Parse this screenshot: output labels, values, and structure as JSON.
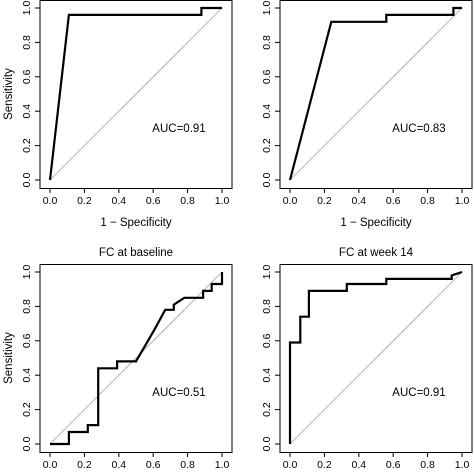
{
  "chart_data": [
    {
      "type": "line",
      "title": "",
      "xlabel": "1 − Specificity",
      "ylabel": "Sensitivity",
      "xlim": [
        0,
        1
      ],
      "ylim": [
        0,
        1
      ],
      "xticks": [
        "0.0",
        "0.2",
        "0.4",
        "0.6",
        "0.8",
        "1.0"
      ],
      "yticks": [
        "0.0",
        "0.2",
        "0.4",
        "0.6",
        "0.8",
        "1.0"
      ],
      "annotation": "AUC=0.91",
      "grid": false,
      "reference_line": [
        [
          0,
          0
        ],
        [
          1,
          1
        ]
      ],
      "series": [
        {
          "x": [
            0,
            0.11,
            0.11,
            0.88,
            0.88,
            1.0
          ],
          "y": [
            0,
            0.96,
            0.96,
            0.96,
            1.0,
            1.0
          ]
        }
      ]
    },
    {
      "type": "line",
      "title": "",
      "xlabel": "1 − Specificity",
      "ylabel": "",
      "xlim": [
        0,
        1
      ],
      "ylim": [
        0,
        1
      ],
      "xticks": [
        "0.0",
        "0.2",
        "0.4",
        "0.6",
        "0.8",
        "1.0"
      ],
      "yticks": [
        "0.0",
        "0.2",
        "0.4",
        "0.6",
        "0.8",
        "1.0"
      ],
      "annotation": "AUC=0.83",
      "grid": false,
      "reference_line": [
        [
          0,
          0
        ],
        [
          1,
          1
        ]
      ],
      "series": [
        {
          "x": [
            0,
            0.24,
            0.56,
            0.56,
            0.95,
            0.95,
            1.0
          ],
          "y": [
            0,
            0.92,
            0.92,
            0.96,
            0.96,
            1.0,
            1.0
          ]
        }
      ]
    },
    {
      "type": "line",
      "title": "FC at baseline",
      "xlabel": "",
      "ylabel": "Sensitivity",
      "xlim": [
        0,
        1
      ],
      "ylim": [
        0,
        1
      ],
      "xticks": [
        "0.0",
        "0.2",
        "0.4",
        "0.6",
        "0.8",
        "1.0"
      ],
      "yticks": [
        "0.0",
        "0.2",
        "0.4",
        "0.6",
        "0.8",
        "1.0"
      ],
      "annotation": "AUC=0.51",
      "grid": false,
      "reference_line": [
        [
          0,
          0
        ],
        [
          1,
          1
        ]
      ],
      "series": [
        {
          "x": [
            0,
            0.11,
            0.11,
            0.22,
            0.22,
            0.28,
            0.28,
            0.39,
            0.39,
            0.5,
            0.61,
            0.61,
            0.67,
            0.72,
            0.72,
            0.78,
            0.83,
            0.89,
            0.89,
            0.94,
            0.94,
            1.0,
            1.0
          ],
          "y": [
            0,
            0,
            0.07,
            0.07,
            0.11,
            0.11,
            0.44,
            0.44,
            0.48,
            0.48,
            0.67,
            0.67,
            0.78,
            0.78,
            0.81,
            0.85,
            0.85,
            0.85,
            0.89,
            0.89,
            0.93,
            0.93,
            1.0
          ]
        }
      ]
    },
    {
      "type": "line",
      "title": "FC at week 14",
      "xlabel": "",
      "ylabel": "",
      "xlim": [
        0,
        1
      ],
      "ylim": [
        0,
        1
      ],
      "xticks": [
        "0.0",
        "0.2",
        "0.4",
        "0.6",
        "0.8",
        "1.0"
      ],
      "yticks": [
        "0.0",
        "0.2",
        "0.4",
        "0.6",
        "0.8",
        "1.0"
      ],
      "annotation": "AUC=0.91",
      "grid": false,
      "reference_line": [
        [
          0,
          0
        ],
        [
          1,
          1
        ]
      ],
      "series": [
        {
          "x": [
            0,
            0,
            0.06,
            0.06,
            0.11,
            0.11,
            0.33,
            0.33,
            0.56,
            0.56,
            0.94,
            0.94,
            1.0
          ],
          "y": [
            0,
            0.59,
            0.59,
            0.74,
            0.74,
            0.89,
            0.89,
            0.93,
            0.93,
            0.96,
            0.96,
            0.98,
            1.0
          ]
        }
      ]
    }
  ]
}
